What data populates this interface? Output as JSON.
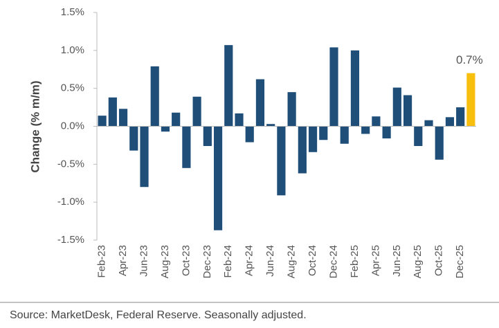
{
  "chart_data": {
    "type": "bar",
    "y_label": "Change (% m/m)",
    "source": "Source: MarketDesk, Federal Reserve. Seasonally adjusted.",
    "categories": [
      "Feb-23",
      null,
      "Apr-23",
      null,
      "Jun-23",
      null,
      "Aug-23",
      null,
      "Oct-23",
      null,
      "Dec-23",
      null,
      "Feb-24",
      null,
      "Apr-24",
      null,
      "Jun-24",
      null,
      "Aug-24",
      null,
      "Oct-24",
      null,
      "Dec-24",
      null,
      "Feb-25",
      null,
      "Apr-25",
      null,
      "Jun-25",
      null,
      "Aug-25",
      null,
      "Oct-25",
      null,
      "Dec-25",
      null
    ],
    "values": [
      0.14,
      0.38,
      0.23,
      -0.32,
      -0.8,
      0.79,
      -0.07,
      0.18,
      -0.55,
      0.39,
      -0.26,
      -1.37,
      1.07,
      0.17,
      -0.21,
      0.62,
      0.03,
      -0.91,
      0.45,
      -0.62,
      -0.34,
      -0.18,
      1.04,
      -0.23,
      1.0,
      -0.1,
      0.13,
      -0.16,
      0.51,
      0.41,
      -0.26,
      0.08,
      -0.44,
      0.12,
      0.25,
      0.7
    ],
    "value_labels": [
      null,
      null,
      null,
      null,
      null,
      null,
      null,
      null,
      null,
      null,
      null,
      null,
      null,
      null,
      null,
      null,
      null,
      null,
      null,
      null,
      null,
      null,
      null,
      null,
      null,
      null,
      null,
      null,
      null,
      null,
      null,
      null,
      null,
      null,
      null,
      "0.7%"
    ],
    "colors": [
      "#1f4e79",
      "#1f4e79",
      "#1f4e79",
      "#1f4e79",
      "#1f4e79",
      "#1f4e79",
      "#1f4e79",
      "#1f4e79",
      "#1f4e79",
      "#1f4e79",
      "#1f4e79",
      "#1f4e79",
      "#1f4e79",
      "#1f4e79",
      "#1f4e79",
      "#1f4e79",
      "#1f4e79",
      "#1f4e79",
      "#1f4e79",
      "#1f4e79",
      "#1f4e79",
      "#1f4e79",
      "#1f4e79",
      "#1f4e79",
      "#1f4e79",
      "#1f4e79",
      "#1f4e79",
      "#1f4e79",
      "#1f4e79",
      "#1f4e79",
      "#1f4e79",
      "#1f4e79",
      "#1f4e79",
      "#1f4e79",
      "#1f4e79",
      "#f9bf0f"
    ],
    "ylim": [
      -1.5,
      1.5
    ],
    "yticks": [
      {
        "value": -1.5,
        "label": "-1.5%"
      },
      {
        "value": -1.0,
        "label": "-1.0%"
      },
      {
        "value": -0.5,
        "label": "-0.5%"
      },
      {
        "value": 0,
        "label": "0.0%"
      },
      {
        "value": 0.5,
        "label": "0.5%"
      },
      {
        "value": 1.0,
        "label": "1.0%"
      },
      {
        "value": 1.5,
        "label": "1.5%"
      }
    ],
    "grid": false
  }
}
